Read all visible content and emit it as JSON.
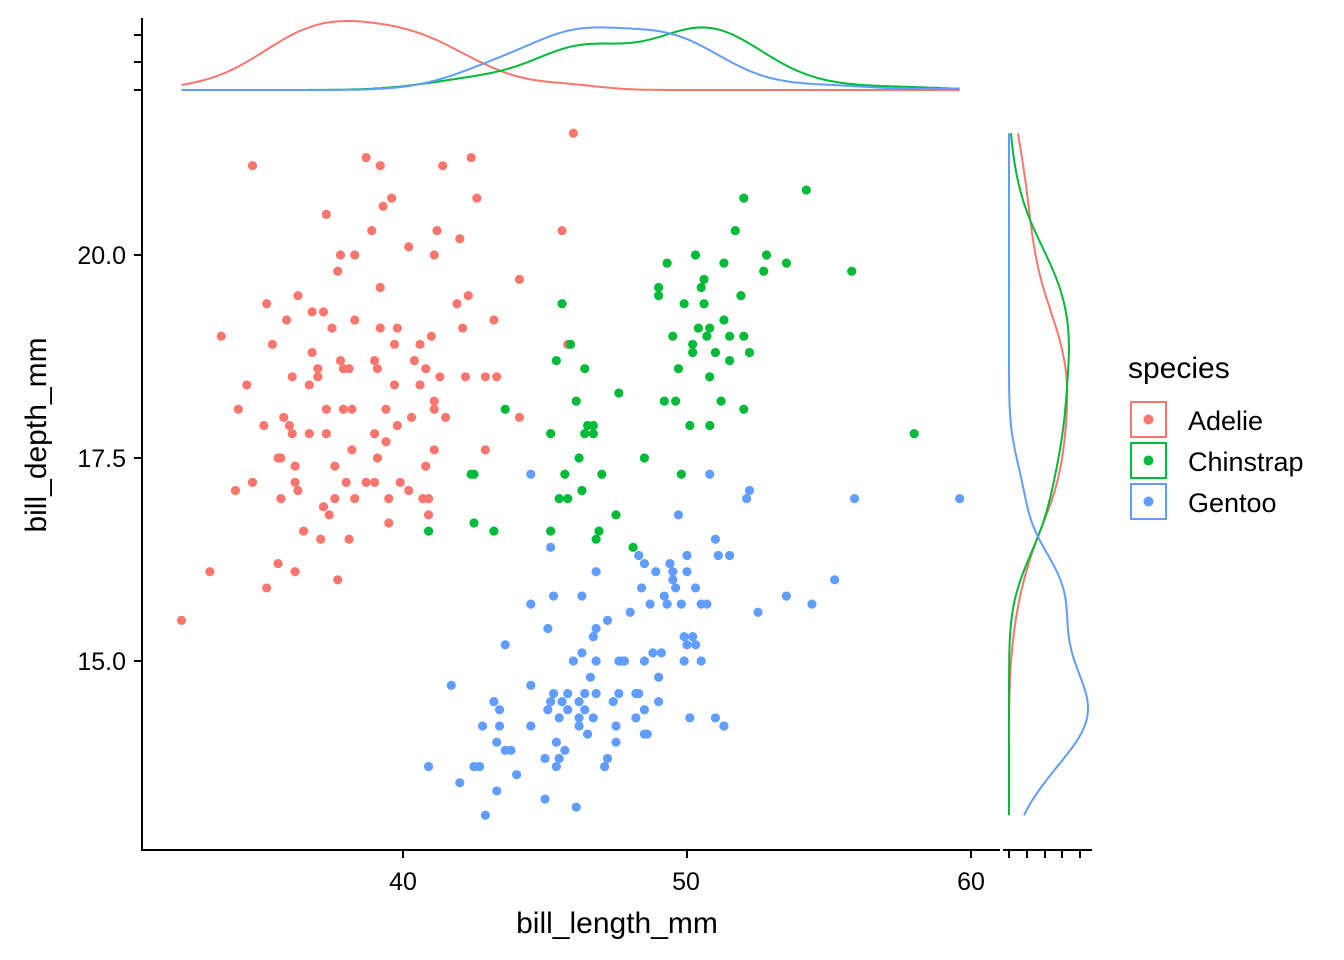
{
  "chart_data": {
    "type": "scatter",
    "title": "",
    "xlabel": "bill_length_mm",
    "ylabel": "bill_depth_mm",
    "xlim": [
      31.2,
      61.3
    ],
    "ylim": [
      12.7,
      21.8
    ],
    "xticks": [
      40,
      50,
      60
    ],
    "xtick_labels": [
      "40",
      "50",
      "60"
    ],
    "yticks": [
      15.0,
      17.5,
      20.0
    ],
    "ytick_labels": [
      "15.0",
      "17.5",
      "20.0"
    ],
    "grid": false,
    "marginals": "density (top: bill_length_mm, right: bill_depth_mm)",
    "legend": {
      "title": "species",
      "position": "right",
      "entries": [
        "Adelie",
        "Chinstrap",
        "Gentoo"
      ]
    },
    "colors": {
      "Adelie": "#F8766D",
      "Chinstrap": "#00BA38",
      "Gentoo": "#619CFF"
    },
    "series": [
      {
        "name": "Adelie",
        "points": [
          [
            32.2,
            15.5
          ],
          [
            33.2,
            16.1
          ],
          [
            33.6,
            19.0
          ],
          [
            34.1,
            17.1
          ],
          [
            34.2,
            18.1
          ],
          [
            34.5,
            18.4
          ],
          [
            34.7,
            21.1
          ],
          [
            34.7,
            17.2
          ],
          [
            35.1,
            17.9
          ],
          [
            35.2,
            19.4
          ],
          [
            35.2,
            15.9
          ],
          [
            35.4,
            18.9
          ],
          [
            35.6,
            17.5
          ],
          [
            35.6,
            16.2
          ],
          [
            35.7,
            17.5
          ],
          [
            35.7,
            17.0
          ],
          [
            35.8,
            18.0
          ],
          [
            35.9,
            19.2
          ],
          [
            36.0,
            17.9
          ],
          [
            36.1,
            17.8
          ],
          [
            36.1,
            18.5
          ],
          [
            36.2,
            17.4
          ],
          [
            36.2,
            16.1
          ],
          [
            36.3,
            19.5
          ],
          [
            36.2,
            17.2
          ],
          [
            36.3,
            17.1
          ],
          [
            36.5,
            16.6
          ],
          [
            36.7,
            17.8
          ],
          [
            36.7,
            18.4
          ],
          [
            36.8,
            18.8
          ],
          [
            36.8,
            19.3
          ],
          [
            37.0,
            18.5
          ],
          [
            37.0,
            18.6
          ],
          [
            37.1,
            16.5
          ],
          [
            37.2,
            16.9
          ],
          [
            37.2,
            19.3
          ],
          [
            37.3,
            17.8
          ],
          [
            37.3,
            20.5
          ],
          [
            37.3,
            18.1
          ],
          [
            37.4,
            16.8
          ],
          [
            37.5,
            19.1
          ],
          [
            37.6,
            17.4
          ],
          [
            37.6,
            17.0
          ],
          [
            37.7,
            19.8
          ],
          [
            37.7,
            16.0
          ],
          [
            37.8,
            18.7
          ],
          [
            37.8,
            20.0
          ],
          [
            37.9,
            18.1
          ],
          [
            37.9,
            18.6
          ],
          [
            38.0,
            17.2
          ],
          [
            38.1,
            18.6
          ],
          [
            38.1,
            16.5
          ],
          [
            38.2,
            18.1
          ],
          [
            38.2,
            17.6
          ],
          [
            38.3,
            20.0
          ],
          [
            38.3,
            19.2
          ],
          [
            38.3,
            17.0
          ],
          [
            38.7,
            21.2
          ],
          [
            38.7,
            17.2
          ],
          [
            38.9,
            20.3
          ],
          [
            39.0,
            18.7
          ],
          [
            39.0,
            17.8
          ],
          [
            39.1,
            17.5
          ],
          [
            39.0,
            17.2
          ],
          [
            39.1,
            18.6
          ],
          [
            39.2,
            19.1
          ],
          [
            39.2,
            21.1
          ],
          [
            39.2,
            19.6
          ],
          [
            39.3,
            20.6
          ],
          [
            39.4,
            17.7
          ],
          [
            39.4,
            18.1
          ],
          [
            39.5,
            17.0
          ],
          [
            39.5,
            16.7
          ],
          [
            39.6,
            20.7
          ],
          [
            39.7,
            18.9
          ],
          [
            39.7,
            18.4
          ],
          [
            39.8,
            17.9
          ],
          [
            39.8,
            19.1
          ],
          [
            39.9,
            17.2
          ],
          [
            40.2,
            17.1
          ],
          [
            40.2,
            20.1
          ],
          [
            40.3,
            18.0
          ],
          [
            40.4,
            18.7
          ],
          [
            40.6,
            18.9
          ],
          [
            40.6,
            18.4
          ],
          [
            40.7,
            17.0
          ],
          [
            40.8,
            17.4
          ],
          [
            40.8,
            18.6
          ],
          [
            40.9,
            17.0
          ],
          [
            40.9,
            16.8
          ],
          [
            41.0,
            19.0
          ],
          [
            41.1,
            20.0
          ],
          [
            41.1,
            17.6
          ],
          [
            41.1,
            18.1
          ],
          [
            41.1,
            18.2
          ],
          [
            41.2,
            20.3
          ],
          [
            41.4,
            21.1
          ],
          [
            41.3,
            18.5
          ],
          [
            41.5,
            18.0
          ],
          [
            41.9,
            19.4
          ],
          [
            42.0,
            20.2
          ],
          [
            42.1,
            19.1
          ],
          [
            42.2,
            18.5
          ],
          [
            42.3,
            19.5
          ],
          [
            42.4,
            21.2
          ],
          [
            42.6,
            20.7
          ],
          [
            42.9,
            18.5
          ],
          [
            42.9,
            17.6
          ],
          [
            43.2,
            19.2
          ],
          [
            43.3,
            18.5
          ],
          [
            44.1,
            19.7
          ],
          [
            44.1,
            18.0
          ],
          [
            45.6,
            20.3
          ],
          [
            45.8,
            18.9
          ],
          [
            46.0,
            21.5
          ]
        ]
      },
      {
        "name": "Chinstrap",
        "points": [
          [
            40.9,
            16.6
          ],
          [
            42.4,
            17.3
          ],
          [
            42.5,
            16.7
          ],
          [
            42.5,
            17.3
          ],
          [
            43.2,
            16.6
          ],
          [
            43.6,
            18.1
          ],
          [
            45.2,
            17.8
          ],
          [
            45.2,
            16.6
          ],
          [
            45.4,
            18.7
          ],
          [
            45.5,
            17.0
          ],
          [
            45.6,
            19.4
          ],
          [
            45.7,
            17.3
          ],
          [
            45.8,
            17.0
          ],
          [
            45.9,
            18.9
          ],
          [
            46.1,
            18.2
          ],
          [
            46.2,
            17.5
          ],
          [
            46.3,
            17.1
          ],
          [
            46.4,
            17.8
          ],
          [
            46.4,
            18.6
          ],
          [
            46.5,
            17.9
          ],
          [
            46.7,
            17.8
          ],
          [
            46.7,
            17.9
          ],
          [
            46.8,
            16.5
          ],
          [
            46.9,
            16.6
          ],
          [
            47.0,
            17.3
          ],
          [
            47.5,
            16.8
          ],
          [
            47.6,
            18.3
          ],
          [
            48.1,
            16.4
          ],
          [
            48.5,
            17.5
          ],
          [
            49.0,
            19.6
          ],
          [
            49.0,
            19.5
          ],
          [
            49.2,
            18.2
          ],
          [
            49.3,
            19.9
          ],
          [
            49.5,
            19.0
          ],
          [
            49.6,
            18.2
          ],
          [
            49.7,
            18.6
          ],
          [
            49.8,
            17.3
          ],
          [
            49.9,
            19.4
          ],
          [
            50.1,
            17.9
          ],
          [
            50.2,
            18.8
          ],
          [
            50.2,
            18.9
          ],
          [
            50.3,
            20.0
          ],
          [
            50.4,
            19.1
          ],
          [
            50.5,
            19.6
          ],
          [
            50.6,
            19.4
          ],
          [
            50.6,
            19.7
          ],
          [
            50.7,
            19.0
          ],
          [
            50.8,
            18.5
          ],
          [
            50.8,
            17.9
          ],
          [
            50.8,
            19.1
          ],
          [
            51.0,
            18.8
          ],
          [
            51.2,
            18.2
          ],
          [
            51.3,
            19.9
          ],
          [
            51.3,
            19.2
          ],
          [
            51.5,
            19.0
          ],
          [
            51.5,
            18.7
          ],
          [
            51.7,
            20.3
          ],
          [
            51.9,
            19.5
          ],
          [
            52.0,
            20.7
          ],
          [
            52.0,
            19.0
          ],
          [
            52.0,
            18.1
          ],
          [
            52.2,
            18.8
          ],
          [
            52.7,
            19.8
          ],
          [
            52.8,
            20.0
          ],
          [
            53.5,
            19.9
          ],
          [
            54.2,
            20.8
          ],
          [
            55.8,
            19.8
          ],
          [
            58.0,
            17.8
          ]
        ]
      },
      {
        "name": "Gentoo",
        "points": [
          [
            40.9,
            13.7
          ],
          [
            41.7,
            14.7
          ],
          [
            42.0,
            13.5
          ],
          [
            42.5,
            13.7
          ],
          [
            42.7,
            13.7
          ],
          [
            42.8,
            14.2
          ],
          [
            42.9,
            13.1
          ],
          [
            43.2,
            14.5
          ],
          [
            43.3,
            14.0
          ],
          [
            43.4,
            14.2
          ],
          [
            43.4,
            14.4
          ],
          [
            43.6,
            13.9
          ],
          [
            43.8,
            13.9
          ],
          [
            43.3,
            13.4
          ],
          [
            43.6,
            15.2
          ],
          [
            44.0,
            13.6
          ],
          [
            44.5,
            17.3
          ],
          [
            44.5,
            15.7
          ],
          [
            44.5,
            14.7
          ],
          [
            44.5,
            14.2
          ],
          [
            45.0,
            13.3
          ],
          [
            45.0,
            13.8
          ],
          [
            45.1,
            15.4
          ],
          [
            45.1,
            14.4
          ],
          [
            45.2,
            14.5
          ],
          [
            45.2,
            16.4
          ],
          [
            45.3,
            15.8
          ],
          [
            45.3,
            14.6
          ],
          [
            45.4,
            14.0
          ],
          [
            45.4,
            13.7
          ],
          [
            45.5,
            13.8
          ],
          [
            45.5,
            14.3
          ],
          [
            45.6,
            14.5
          ],
          [
            45.7,
            13.9
          ],
          [
            45.8,
            14.6
          ],
          [
            45.8,
            14.4
          ],
          [
            46.0,
            15.0
          ],
          [
            46.1,
            13.2
          ],
          [
            46.2,
            14.3
          ],
          [
            46.2,
            14.5
          ],
          [
            46.2,
            14.2
          ],
          [
            46.3,
            15.8
          ],
          [
            46.3,
            15.1
          ],
          [
            46.4,
            14.4
          ],
          [
            46.4,
            14.6
          ],
          [
            46.5,
            14.1
          ],
          [
            46.6,
            14.8
          ],
          [
            46.7,
            14.3
          ],
          [
            46.7,
            15.3
          ],
          [
            46.8,
            16.1
          ],
          [
            46.8,
            15.4
          ],
          [
            46.8,
            15.0
          ],
          [
            46.8,
            14.6
          ],
          [
            47.1,
            13.7
          ],
          [
            47.2,
            15.5
          ],
          [
            47.2,
            13.8
          ],
          [
            47.4,
            14.5
          ],
          [
            47.5,
            14.0
          ],
          [
            47.5,
            14.2
          ],
          [
            47.6,
            15.0
          ],
          [
            47.6,
            14.6
          ],
          [
            47.7,
            15.0
          ],
          [
            47.8,
            15.0
          ],
          [
            48.0,
            15.6
          ],
          [
            48.2,
            14.3
          ],
          [
            48.2,
            14.6
          ],
          [
            48.3,
            16.3
          ],
          [
            48.3,
            14.6
          ],
          [
            48.4,
            15.9
          ],
          [
            48.5,
            15.0
          ],
          [
            48.5,
            14.1
          ],
          [
            48.5,
            16.2
          ],
          [
            48.5,
            14.4
          ],
          [
            48.6,
            14.1
          ],
          [
            48.7,
            15.7
          ],
          [
            48.8,
            15.1
          ],
          [
            48.9,
            16.1
          ],
          [
            49.0,
            14.8
          ],
          [
            49.0,
            14.5
          ],
          [
            49.1,
            15.1
          ],
          [
            49.2,
            15.8
          ],
          [
            49.3,
            15.7
          ],
          [
            49.4,
            16.2
          ],
          [
            49.5,
            16.1
          ],
          [
            49.5,
            16.0
          ],
          [
            49.6,
            15.9
          ],
          [
            49.7,
            16.8
          ],
          [
            49.8,
            15.7
          ],
          [
            49.9,
            15.0
          ],
          [
            49.9,
            15.3
          ],
          [
            50.0,
            16.3
          ],
          [
            50.0,
            15.2
          ],
          [
            50.0,
            16.1
          ],
          [
            50.1,
            14.3
          ],
          [
            50.2,
            15.3
          ],
          [
            50.3,
            15.9
          ],
          [
            50.3,
            15.2
          ],
          [
            50.5,
            15.7
          ],
          [
            50.5,
            15.0
          ],
          [
            50.7,
            15.7
          ],
          [
            50.8,
            17.3
          ],
          [
            51.0,
            16.5
          ],
          [
            51.0,
            14.3
          ],
          [
            51.1,
            16.3
          ],
          [
            51.3,
            14.2
          ],
          [
            51.5,
            16.3
          ],
          [
            52.1,
            17.0
          ],
          [
            52.2,
            17.1
          ],
          [
            52.5,
            15.6
          ],
          [
            53.5,
            15.8
          ],
          [
            54.4,
            15.7
          ],
          [
            55.2,
            16.0
          ],
          [
            55.9,
            17.0
          ],
          [
            59.6,
            17.0
          ]
        ]
      }
    ]
  }
}
